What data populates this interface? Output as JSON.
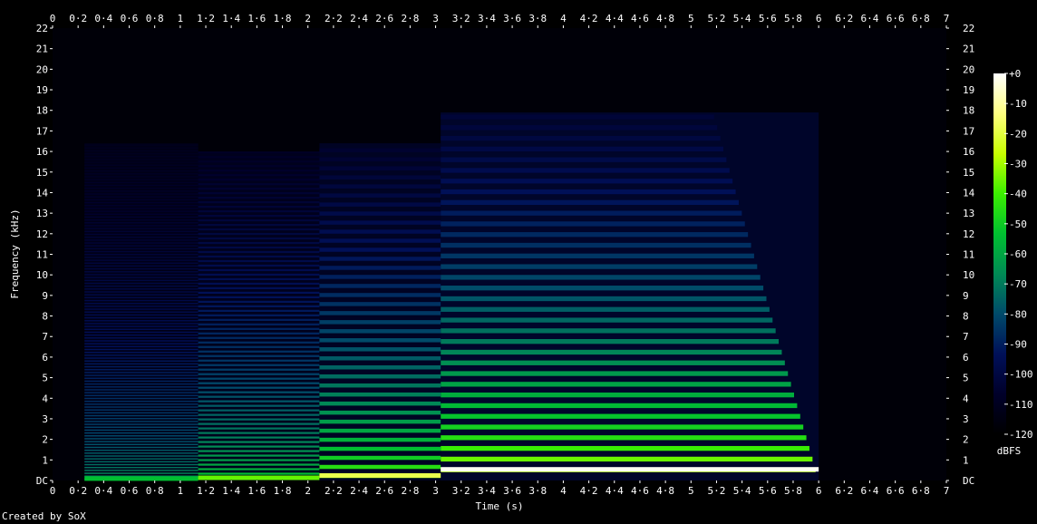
{
  "chart_data": {
    "type": "heatmap",
    "title": "",
    "xlabel": "Time (s)",
    "ylabel": "Frequency (kHz)",
    "xlim": [
      0,
      7
    ],
    "ylim": [
      0,
      22
    ],
    "x_ticks": [
      "0",
      "0·2",
      "0·4",
      "0·6",
      "0·8",
      "1",
      "1·2",
      "1·4",
      "1·6",
      "1·8",
      "2",
      "2·2",
      "2·4",
      "2·6",
      "2·8",
      "3",
      "3·2",
      "3·4",
      "3·6",
      "3·8",
      "4",
      "4·2",
      "4·4",
      "4·6",
      "4·8",
      "5",
      "5·2",
      "5·4",
      "5·6",
      "5·8",
      "6",
      "6·2",
      "6·4",
      "6·6",
      "6·8",
      "7"
    ],
    "y_ticks": [
      "DC",
      "1",
      "2",
      "3",
      "4",
      "5",
      "6",
      "7",
      "8",
      "9",
      "10",
      "11",
      "12",
      "13",
      "14",
      "15",
      "16",
      "17",
      "18",
      "19",
      "20",
      "21",
      "22"
    ],
    "colorbar": {
      "label": "dBFS",
      "ticks": [
        "+0",
        "-10",
        "-20",
        "-30",
        "-40",
        "-50",
        "-60",
        "-70",
        "-80",
        "-90",
        "-100",
        "-110",
        "-120"
      ],
      "range": [
        -120,
        0
      ],
      "colors": [
        "#000000",
        "#00002a",
        "#001058",
        "#004a6a",
        "#008a55",
        "#00c030",
        "#3cf000",
        "#c8ff00",
        "#ffff80",
        "#ffffff"
      ]
    },
    "segments": [
      {
        "t_start": 0.25,
        "t_end": 1.14,
        "f0_hz": 70,
        "spacing_hz": 140,
        "max_khz": 16.4,
        "brightness": 0.55
      },
      {
        "t_start": 1.14,
        "t_end": 2.09,
        "f0_hz": 110,
        "spacing_hz": 220,
        "max_khz": 16.0,
        "brightness": 0.7
      },
      {
        "t_start": 2.09,
        "t_end": 3.04,
        "f0_hz": 220,
        "spacing_hz": 440,
        "max_khz": 16.4,
        "brightness": 0.85
      },
      {
        "t_start": 3.04,
        "t_end": 6.0,
        "f0_hz": 520,
        "spacing_hz": 520,
        "max_khz": 17.9,
        "brightness": 1.0
      }
    ]
  },
  "footer": {
    "credit": "Created by SoX"
  }
}
